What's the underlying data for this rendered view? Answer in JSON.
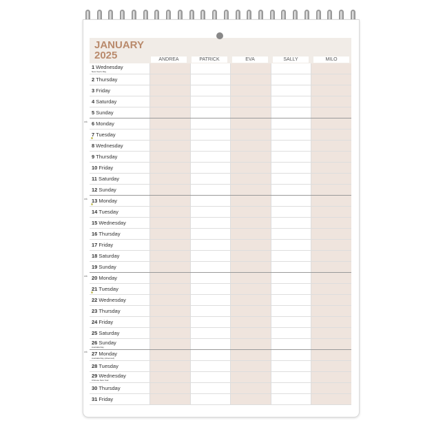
{
  "calendar": {
    "month": "JANUARY",
    "year": "2025",
    "people": [
      "ANDREA",
      "PATRICK",
      "EVA",
      "SALLY",
      "MILO"
    ],
    "days": [
      {
        "d": "1",
        "w": "Wednesday",
        "h": "New Year's Day"
      },
      {
        "d": "2",
        "w": "Thursday"
      },
      {
        "d": "3",
        "w": "Friday"
      },
      {
        "d": "4",
        "w": "Saturday"
      },
      {
        "d": "5",
        "w": "Sunday"
      },
      {
        "d": "6",
        "w": "Monday",
        "wk": "wk"
      },
      {
        "d": "7",
        "w": "Tuesday",
        "moon": true
      },
      {
        "d": "8",
        "w": "Wednesday"
      },
      {
        "d": "9",
        "w": "Thursday"
      },
      {
        "d": "10",
        "w": "Friday"
      },
      {
        "d": "11",
        "w": "Saturday"
      },
      {
        "d": "12",
        "w": "Sunday"
      },
      {
        "d": "13",
        "w": "Monday",
        "wk": "wk",
        "moon": true
      },
      {
        "d": "14",
        "w": "Tuesday"
      },
      {
        "d": "15",
        "w": "Wednesday"
      },
      {
        "d": "16",
        "w": "Thursday"
      },
      {
        "d": "17",
        "w": "Friday"
      },
      {
        "d": "18",
        "w": "Saturday"
      },
      {
        "d": "19",
        "w": "Sunday"
      },
      {
        "d": "20",
        "w": "Monday",
        "wk": "wk"
      },
      {
        "d": "21",
        "w": "Tuesday",
        "moon": true
      },
      {
        "d": "22",
        "w": "Wednesday"
      },
      {
        "d": "23",
        "w": "Thursday"
      },
      {
        "d": "24",
        "w": "Friday"
      },
      {
        "d": "25",
        "w": "Saturday"
      },
      {
        "d": "26",
        "w": "Sunday",
        "h": "Australia Day"
      },
      {
        "d": "27",
        "w": "Monday",
        "wk": "wk",
        "h": "Australia Day (observed)"
      },
      {
        "d": "28",
        "w": "Tuesday"
      },
      {
        "d": "29",
        "w": "Wednesday",
        "h": "Chinese New Year"
      },
      {
        "d": "30",
        "w": "Thursday"
      },
      {
        "d": "31",
        "w": "Friday"
      }
    ]
  },
  "colors": {
    "accent": "#b98a6c",
    "tint": "#efe4dd",
    "header_bg": "#f1ece7"
  }
}
